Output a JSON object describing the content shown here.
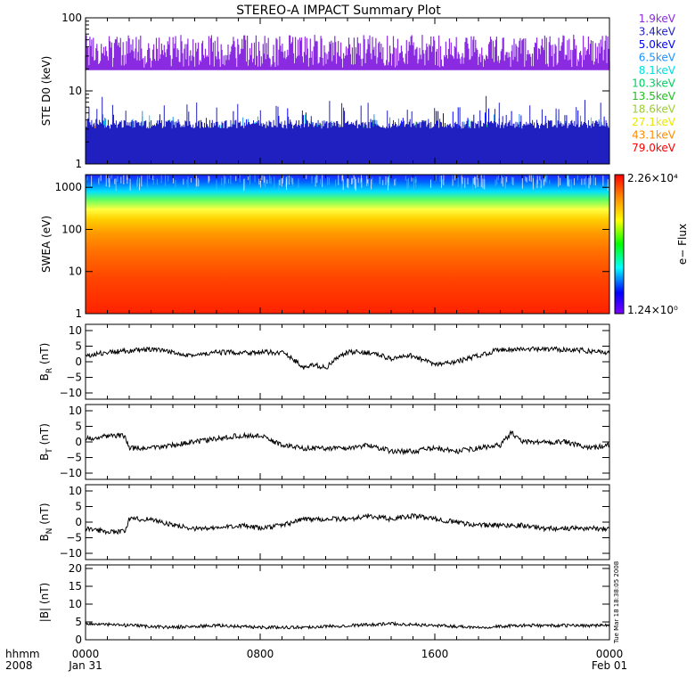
{
  "title": "STEREO-A IMPACT Summary Plot",
  "timestamp": "Tue Mar 18 18:38:05 2008",
  "time_axis": {
    "unit_label": "hhmm",
    "year_label": "2008",
    "ticks": [
      {
        "label": "0000",
        "sublabel": "Jan 31",
        "hours": 0
      },
      {
        "label": "0800",
        "sublabel": "",
        "hours": 8
      },
      {
        "label": "1600",
        "sublabel": "",
        "hours": 16
      },
      {
        "label": "0000",
        "sublabel": "Feb 01",
        "hours": 24
      }
    ]
  },
  "colorbar": {
    "label": "e− Flux",
    "max_label": "2.26×10⁴",
    "min_label": "1.24×10⁰",
    "max_value": 22600,
    "min_value": 1.24
  },
  "chart_data": [
    {
      "type": "line",
      "panel": "ste",
      "ylabel": "STE D0 (keV)",
      "yscale": "log",
      "ylim": [
        1,
        100
      ],
      "yticks": [
        "1",
        "10",
        "100"
      ],
      "ytick_values": [
        1,
        10,
        100
      ],
      "series": [
        {
          "name": "1.9keV",
          "color": "#8a2be2",
          "typical_value": 35
        },
        {
          "name": "3.4keV",
          "color": "#2020c0",
          "typical_value": 3.5
        },
        {
          "name": "5.0keV",
          "color": "#0000ff",
          "typical_value": 2.5
        },
        {
          "name": "6.5keV",
          "color": "#1e90ff",
          "typical_value": 2.2
        },
        {
          "name": "8.1keV",
          "color": "#00e0e0",
          "typical_value": 1.9
        },
        {
          "name": "10.3keV",
          "color": "#00d060",
          "typical_value": 1.8
        },
        {
          "name": "13.5keV",
          "color": "#20c020",
          "typical_value": 1.7
        },
        {
          "name": "18.6keV",
          "color": "#9acd32",
          "typical_value": 1.6
        },
        {
          "name": "27.1keV",
          "color": "#e8e800",
          "typical_value": 1.5
        },
        {
          "name": "43.1keV",
          "color": "#ff8c00",
          "typical_value": 1.4
        },
        {
          "name": "79.0keV",
          "color": "#ff0000",
          "typical_value": 1.3
        }
      ]
    },
    {
      "type": "heatmap",
      "panel": "swea",
      "ylabel": "SWEA (eV)",
      "yscale": "log",
      "ylim": [
        1,
        2000
      ],
      "yticks": [
        "1",
        "10",
        "100",
        "1000"
      ],
      "ytick_values": [
        1,
        10,
        100,
        1000
      ],
      "energy_profile": [
        {
          "energy": 1,
          "log_flux": 4.1
        },
        {
          "energy": 3,
          "log_flux": 4.3
        },
        {
          "energy": 10,
          "log_flux": 3.9
        },
        {
          "energy": 30,
          "log_flux": 3.6
        },
        {
          "energy": 100,
          "log_flux": 3.1
        },
        {
          "energy": 300,
          "log_flux": 2.4
        },
        {
          "energy": 600,
          "log_flux": 1.8
        },
        {
          "energy": 1000,
          "log_flux": 1.2
        },
        {
          "energy": 2000,
          "log_flux": 0.4
        }
      ]
    },
    {
      "type": "line",
      "panel": "br",
      "ylabel_main": "B",
      "ylabel_sub": "R",
      "ylabel_unit": " (nT)",
      "ylim": [
        -12,
        12
      ],
      "yticks": [
        "10",
        "5",
        "0",
        "−5",
        "−10"
      ],
      "ytick_values": [
        10,
        5,
        0,
        -5,
        -10
      ],
      "x_hours": [
        0,
        1,
        2,
        3,
        4,
        5,
        6,
        7,
        8,
        9,
        9.5,
        10,
        10.5,
        11,
        11.5,
        12,
        12.5,
        13,
        14,
        15,
        16,
        17,
        18,
        19,
        20,
        21,
        22,
        23,
        24
      ],
      "y": [
        2,
        3,
        3.5,
        4,
        3,
        2,
        3,
        3,
        3,
        3,
        1,
        -2,
        -1,
        -2,
        1,
        3,
        3,
        3,
        1,
        2,
        -1,
        0,
        2,
        4,
        4,
        4,
        4,
        3.5,
        3
      ]
    },
    {
      "type": "line",
      "panel": "bt",
      "ylabel_main": "B",
      "ylabel_sub": "T",
      "ylabel_unit": " (nT)",
      "ylim": [
        -12,
        12
      ],
      "yticks": [
        "10",
        "5",
        "0",
        "−5",
        "−10"
      ],
      "ytick_values": [
        10,
        5,
        0,
        -5,
        -10
      ],
      "x_hours": [
        0,
        1,
        1.8,
        2,
        3,
        4,
        5,
        6,
        7,
        8,
        9,
        10,
        11,
        12,
        13,
        14,
        15,
        16,
        17,
        18,
        19,
        19.5,
        20,
        21,
        22,
        23,
        24
      ],
      "y": [
        1,
        2,
        2,
        -2,
        -2,
        -1,
        0,
        1,
        2,
        2,
        -1,
        -2,
        -2,
        -2,
        -1,
        -3,
        -3,
        -2,
        -3,
        -2,
        -1,
        3,
        0,
        0,
        0,
        -2,
        -1
      ]
    },
    {
      "type": "line",
      "panel": "bn",
      "ylabel_main": "B",
      "ylabel_sub": "N",
      "ylabel_unit": " (nT)",
      "ylim": [
        -12,
        12
      ],
      "yticks": [
        "10",
        "5",
        "0",
        "−5",
        "−10"
      ],
      "ytick_values": [
        10,
        5,
        0,
        -5,
        -10
      ],
      "x_hours": [
        0,
        1,
        1.8,
        2,
        3,
        4,
        5,
        6,
        7,
        8,
        9,
        10,
        11,
        12,
        13,
        14,
        15,
        16,
        17,
        18,
        19,
        20,
        21,
        22,
        23,
        24
      ],
      "y": [
        -2,
        -3,
        -3,
        1,
        1,
        -1,
        -2,
        -2,
        -1,
        -2,
        -1,
        1,
        1,
        1,
        2,
        1,
        2,
        1,
        0,
        -1,
        -1,
        -1,
        -2,
        -2,
        -2,
        -2
      ]
    },
    {
      "type": "line",
      "panel": "bmag",
      "ylabel_main": "|B|",
      "ylabel_sub": "",
      "ylabel_unit": " (nT)",
      "ylim": [
        0,
        21
      ],
      "yticks": [
        "20",
        "15",
        "10",
        "5",
        "0"
      ],
      "ytick_values": [
        20,
        15,
        10,
        5,
        0
      ],
      "x_hours": [
        0,
        2,
        4,
        6,
        8,
        10,
        12,
        14,
        16,
        18,
        20,
        22,
        24
      ],
      "y": [
        4.5,
        4,
        3.5,
        4,
        3.5,
        3.5,
        4,
        4.5,
        4,
        3.5,
        4,
        4,
        4
      ]
    }
  ]
}
